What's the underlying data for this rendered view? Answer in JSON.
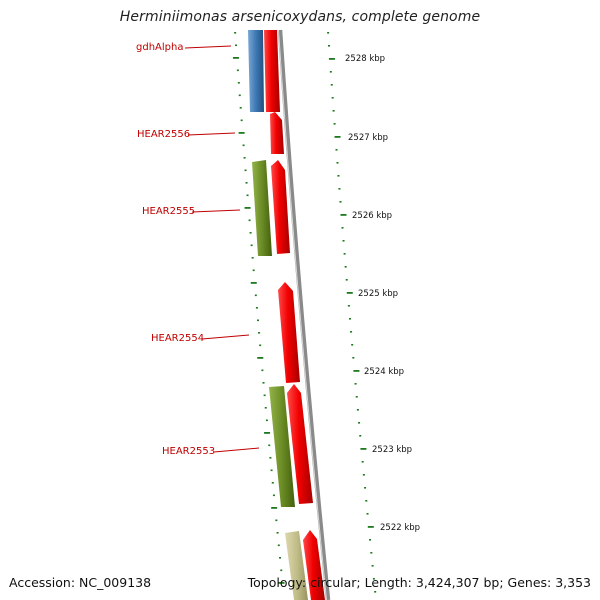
{
  "title": "Herminiimonas arsenicoxydans, complete genome",
  "colors": {
    "forward_gene": "#e00000",
    "reverse_gene_blue": "#3d78b4",
    "reverse_gene_olive": "#6b8c25",
    "reverse_gene_khaki": "#c2be8a",
    "backbone": "#8c8c8c",
    "tick": "#1f7a1f",
    "label": "#c00000"
  },
  "gene_labels": [
    {
      "id": "gdhAlpha",
      "text": "gdhAlpha"
    },
    {
      "id": "HEAR2556",
      "text": "HEAR2556"
    },
    {
      "id": "HEAR2555",
      "text": "HEAR2555"
    },
    {
      "id": "HEAR2554",
      "text": "HEAR2554"
    },
    {
      "id": "HEAR2553",
      "text": "HEAR2553"
    }
  ],
  "kbp_labels": [
    "2528 kbp",
    "2527 kbp",
    "2526 kbp",
    "2525 kbp",
    "2524 kbp",
    "2523 kbp",
    "2522 kbp"
  ],
  "footer": {
    "accession": "Accession: NC_009138",
    "info": "Topology: circular; Length: 3,424,307 bp; Genes: 3,353"
  }
}
